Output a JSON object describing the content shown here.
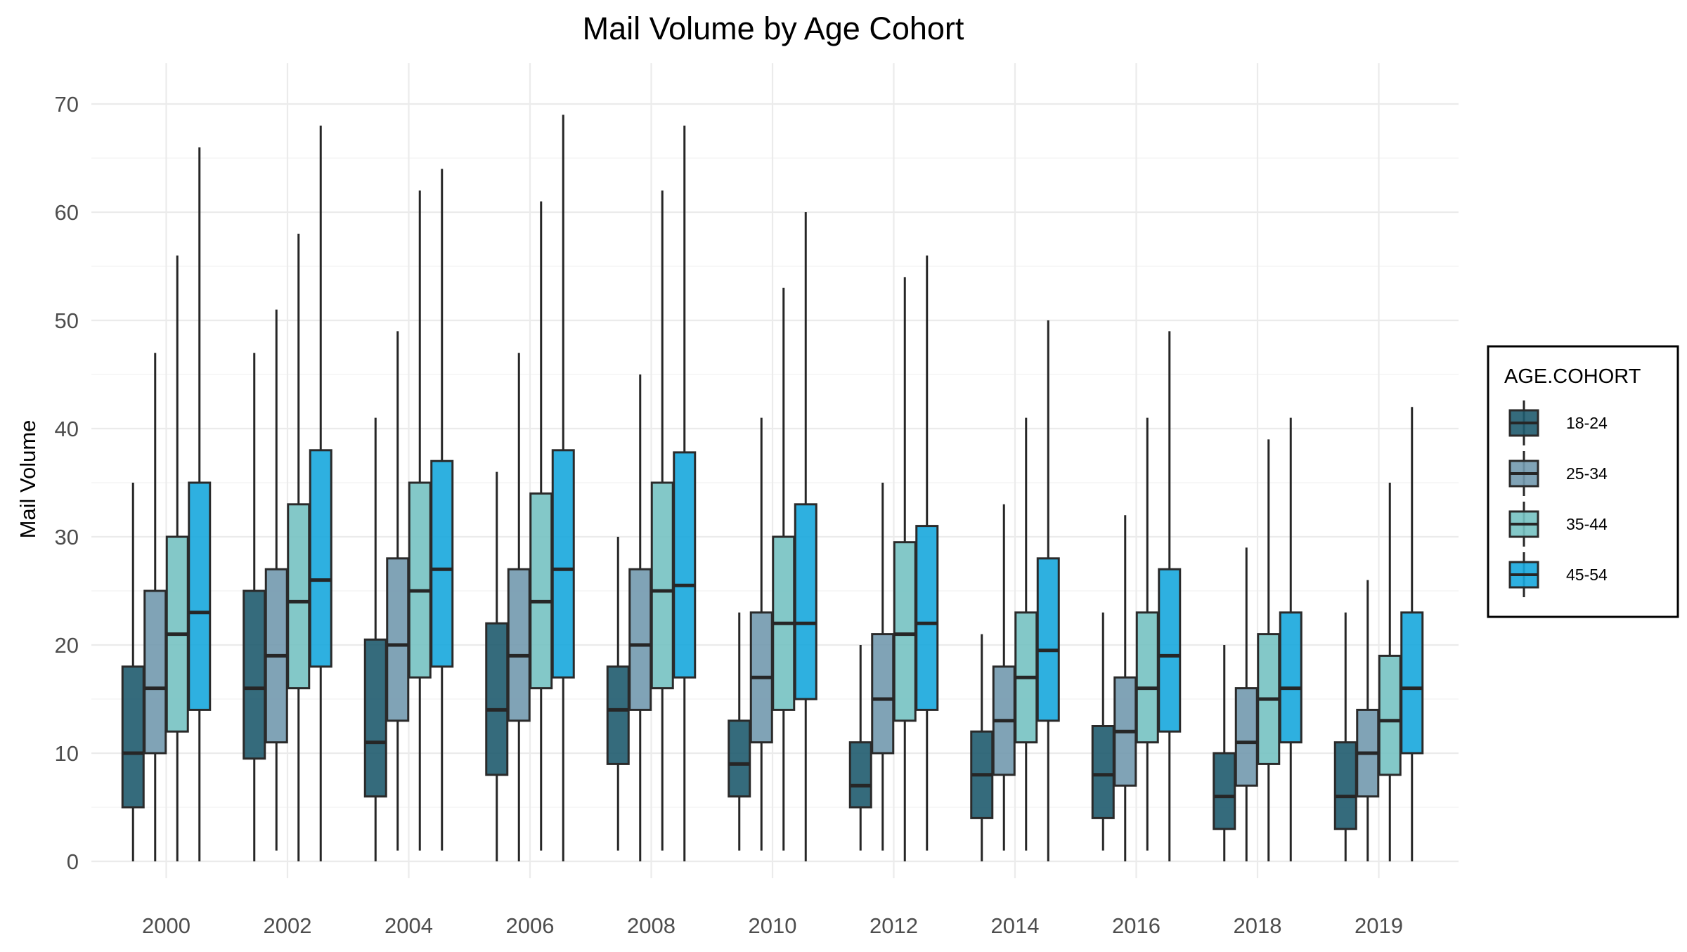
{
  "chart_data": {
    "type": "boxplot",
    "title": "Mail Volume by Age Cohort",
    "xlabel": "",
    "ylabel": "Mail Volume",
    "ylim": [
      0,
      70
    ],
    "yticks": [
      0,
      10,
      20,
      30,
      40,
      50,
      60,
      70
    ],
    "grid": true,
    "legend_title": "AGE.COHORT",
    "legend_position": "right",
    "categories": [
      "2000",
      "2002",
      "2004",
      "2006",
      "2008",
      "2010",
      "2012",
      "2014",
      "2016",
      "2018",
      "2019"
    ],
    "series": [
      {
        "name": "18-24",
        "color": "#1f5b6e",
        "boxes": [
          {
            "min": 0,
            "q1": 5,
            "median": 10,
            "q3": 18,
            "max": 35
          },
          {
            "min": 0,
            "q1": 9.5,
            "median": 16,
            "q3": 25,
            "max": 47
          },
          {
            "min": 0,
            "q1": 6,
            "median": 11,
            "q3": 20.5,
            "max": 41
          },
          {
            "min": 0,
            "q1": 8,
            "median": 14,
            "q3": 22,
            "max": 36
          },
          {
            "min": 1,
            "q1": 9,
            "median": 14,
            "q3": 18,
            "max": 30
          },
          {
            "min": 1,
            "q1": 6,
            "median": 9,
            "q3": 13,
            "max": 23
          },
          {
            "min": 1,
            "q1": 5,
            "median": 7,
            "q3": 11,
            "max": 20
          },
          {
            "min": 0,
            "q1": 4,
            "median": 8,
            "q3": 12,
            "max": 21
          },
          {
            "min": 1,
            "q1": 4,
            "median": 8,
            "q3": 12.5,
            "max": 23
          },
          {
            "min": 0,
            "q1": 3,
            "median": 6,
            "q3": 10,
            "max": 20
          },
          {
            "min": 0,
            "q1": 3,
            "median": 6,
            "q3": 11,
            "max": 23
          }
        ]
      },
      {
        "name": "25-34",
        "color": "#7299ae",
        "boxes": [
          {
            "min": 0,
            "q1": 10,
            "median": 16,
            "q3": 25,
            "max": 47
          },
          {
            "min": 1,
            "q1": 11,
            "median": 19,
            "q3": 27,
            "max": 51
          },
          {
            "min": 1,
            "q1": 13,
            "median": 20,
            "q3": 28,
            "max": 49
          },
          {
            "min": 0,
            "q1": 13,
            "median": 19,
            "q3": 27,
            "max": 47
          },
          {
            "min": 0,
            "q1": 14,
            "median": 20,
            "q3": 27,
            "max": 45
          },
          {
            "min": 1,
            "q1": 11,
            "median": 17,
            "q3": 23,
            "max": 41
          },
          {
            "min": 1,
            "q1": 10,
            "median": 15,
            "q3": 21,
            "max": 35
          },
          {
            "min": 1,
            "q1": 8,
            "median": 13,
            "q3": 18,
            "max": 33
          },
          {
            "min": 0,
            "q1": 7,
            "median": 12,
            "q3": 17,
            "max": 32
          },
          {
            "min": 0,
            "q1": 7,
            "median": 11,
            "q3": 16,
            "max": 29
          },
          {
            "min": 0,
            "q1": 6,
            "median": 10,
            "q3": 14,
            "max": 26
          }
        ]
      },
      {
        "name": "35-44",
        "color": "#76c2c2",
        "boxes": [
          {
            "min": 0,
            "q1": 12,
            "median": 21,
            "q3": 30,
            "max": 56
          },
          {
            "min": 0,
            "q1": 16,
            "median": 24,
            "q3": 33,
            "max": 58
          },
          {
            "min": 1,
            "q1": 17,
            "median": 25,
            "q3": 35,
            "max": 62
          },
          {
            "min": 1,
            "q1": 16,
            "median": 24,
            "q3": 34,
            "max": 61
          },
          {
            "min": 1,
            "q1": 16,
            "median": 25,
            "q3": 35,
            "max": 62
          },
          {
            "min": 1,
            "q1": 14,
            "median": 22,
            "q3": 30,
            "max": 53
          },
          {
            "min": 0,
            "q1": 13,
            "median": 21,
            "q3": 29.5,
            "max": 54
          },
          {
            "min": 1,
            "q1": 11,
            "median": 17,
            "q3": 23,
            "max": 41
          },
          {
            "min": 1,
            "q1": 11,
            "median": 16,
            "q3": 23,
            "max": 41
          },
          {
            "min": 0,
            "q1": 9,
            "median": 15,
            "q3": 21,
            "max": 39
          },
          {
            "min": 0,
            "q1": 8,
            "median": 13,
            "q3": 19,
            "max": 35
          }
        ]
      },
      {
        "name": "45-54",
        "color": "#17a7dd",
        "boxes": [
          {
            "min": 0,
            "q1": 14,
            "median": 23,
            "q3": 35,
            "max": 66
          },
          {
            "min": 0,
            "q1": 18,
            "median": 26,
            "q3": 38,
            "max": 68
          },
          {
            "min": 1,
            "q1": 18,
            "median": 27,
            "q3": 37,
            "max": 64
          },
          {
            "min": 0,
            "q1": 17,
            "median": 27,
            "q3": 38,
            "max": 69
          },
          {
            "min": 0,
            "q1": 17,
            "median": 25.5,
            "q3": 37.8,
            "max": 68
          },
          {
            "min": 0,
            "q1": 15,
            "median": 22,
            "q3": 33,
            "max": 60
          },
          {
            "min": 1,
            "q1": 14,
            "median": 22,
            "q3": 31,
            "max": 56
          },
          {
            "min": 0,
            "q1": 13,
            "median": 19.5,
            "q3": 28,
            "max": 50
          },
          {
            "min": 0,
            "q1": 12,
            "median": 19,
            "q3": 27,
            "max": 49
          },
          {
            "min": 0,
            "q1": 11,
            "median": 16,
            "q3": 23,
            "max": 41
          },
          {
            "min": 0,
            "q1": 10,
            "median": 16,
            "q3": 23,
            "max": 42
          }
        ]
      }
    ]
  }
}
